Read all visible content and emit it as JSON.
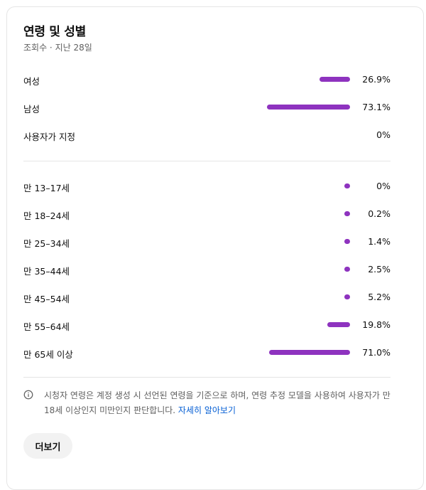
{
  "card": {
    "title": "연령 및 성별",
    "subtitle": "조회수 · 지난 28일"
  },
  "bar_color": "#8e33bf",
  "gender": [
    {
      "label": "여성",
      "value": "26.9%",
      "fraction": 0.269
    },
    {
      "label": "남성",
      "value": "73.1%",
      "fraction": 0.731
    },
    {
      "label": "사용자가 지정",
      "value": "0%",
      "fraction": 0
    }
  ],
  "age": [
    {
      "label": "만 13–17세",
      "value": "0%",
      "fraction": 0
    },
    {
      "label": "만 18–24세",
      "value": "0.2%",
      "fraction": 0.002
    },
    {
      "label": "만 25–34세",
      "value": "1.4%",
      "fraction": 0.014
    },
    {
      "label": "만 35–44세",
      "value": "2.5%",
      "fraction": 0.025
    },
    {
      "label": "만 45–54세",
      "value": "5.2%",
      "fraction": 0.052
    },
    {
      "label": "만 55–64세",
      "value": "19.8%",
      "fraction": 0.198
    },
    {
      "label": "만 65세 이상",
      "value": "71.0%",
      "fraction": 0.71
    }
  ],
  "note": {
    "icon": "info-icon",
    "text": "시청자 연령은 계정 생성 시 선언된 연령을 기준으로 하며, 연령 추정 모델을 사용하여 사용자가 만 18세 이상인지 미만인지 판단합니다.",
    "link": "자세히 알아보기"
  },
  "more_button": {
    "label": "더보기"
  }
}
